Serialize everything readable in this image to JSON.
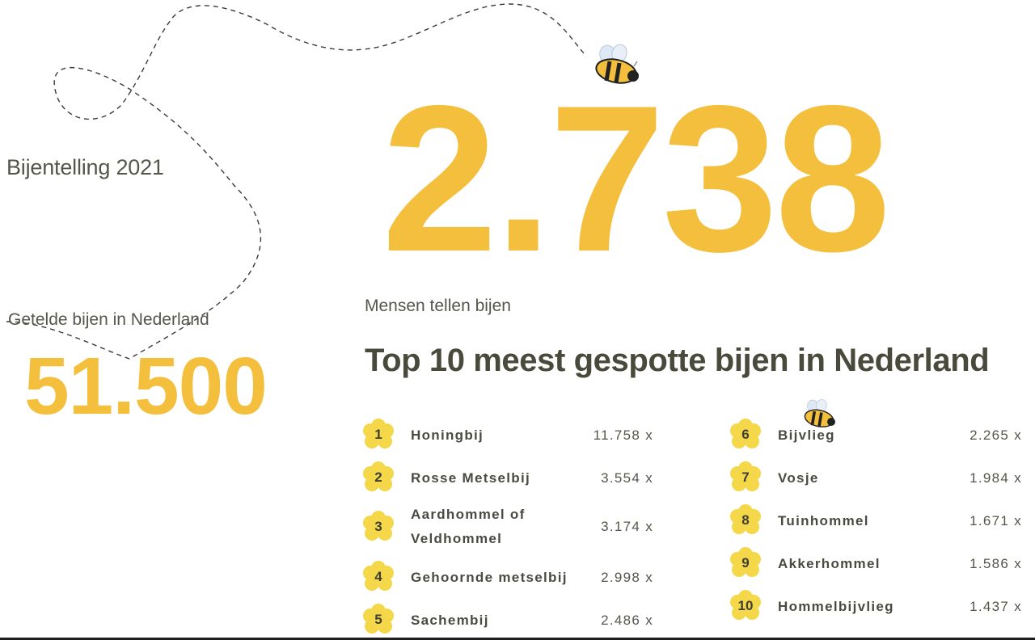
{
  "header": {
    "title": "Bijentelling 2021"
  },
  "counted": {
    "label": "Getelde bijen in Nederland",
    "value": "51.500"
  },
  "participants": {
    "value": "2.738",
    "label": "Mensen tellen bijen"
  },
  "top10": {
    "heading": "Top 10 meest gespotte bijen in Nederland",
    "items": [
      {
        "rank": "1",
        "name": "Honingbij",
        "count": "11.758 x"
      },
      {
        "rank": "2",
        "name": "Rosse Metselbij",
        "count": "3.554 x"
      },
      {
        "rank": "3",
        "name": "Aardhommel of Veldhommel",
        "count": "3.174 x"
      },
      {
        "rank": "4",
        "name": "Gehoornde metselbij",
        "count": "2.998 x"
      },
      {
        "rank": "5",
        "name": "Sachembij",
        "count": "2.486 x"
      },
      {
        "rank": "6",
        "name": "Bijvlieg",
        "count": "2.265 x"
      },
      {
        "rank": "7",
        "name": "Vosje",
        "count": "1.984 x"
      },
      {
        "rank": "8",
        "name": "Tuinhommel",
        "count": "1.671 x"
      },
      {
        "rank": "9",
        "name": "Akkerhommel",
        "count": "1.586 x"
      },
      {
        "rank": "10",
        "name": "Hommelbijvlieg",
        "count": "1.437 x"
      }
    ]
  },
  "icons": {
    "bee": "bee-icon",
    "badge": "flower-badge-icon"
  },
  "colors": {
    "accent": "#f4bf3c",
    "text": "#4a4a42"
  }
}
